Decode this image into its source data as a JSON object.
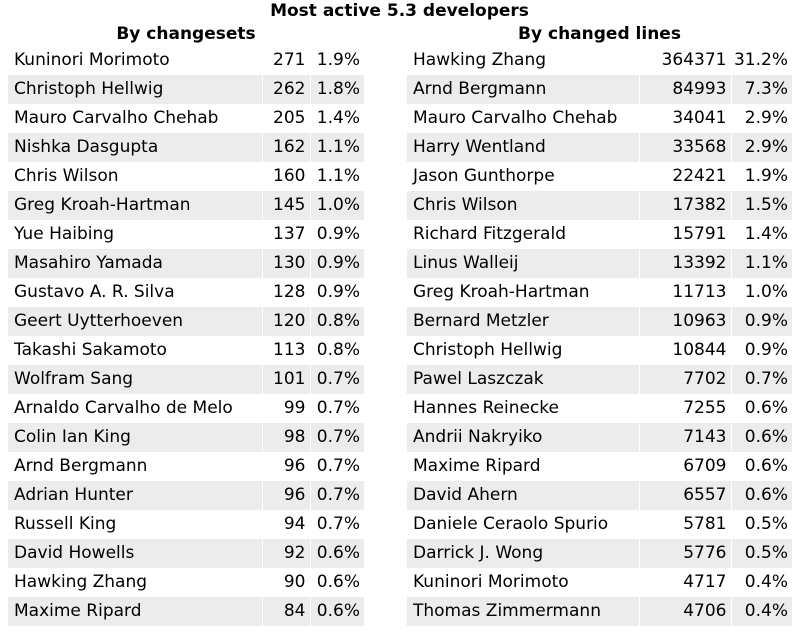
{
  "title": "Most active 5.3 developers",
  "by_changesets": {
    "heading": "By changesets",
    "rows": [
      {
        "name": "Kuninori Morimoto",
        "count": "271",
        "pct": "1.9%"
      },
      {
        "name": "Christoph Hellwig",
        "count": "262",
        "pct": "1.8%"
      },
      {
        "name": "Mauro Carvalho Chehab",
        "count": "205",
        "pct": "1.4%"
      },
      {
        "name": "Nishka Dasgupta",
        "count": "162",
        "pct": "1.1%"
      },
      {
        "name": "Chris Wilson",
        "count": "160",
        "pct": "1.1%"
      },
      {
        "name": "Greg Kroah-Hartman",
        "count": "145",
        "pct": "1.0%"
      },
      {
        "name": "Yue Haibing",
        "count": "137",
        "pct": "0.9%"
      },
      {
        "name": "Masahiro Yamada",
        "count": "130",
        "pct": "0.9%"
      },
      {
        "name": "Gustavo A. R. Silva",
        "count": "128",
        "pct": "0.9%"
      },
      {
        "name": "Geert Uytterhoeven",
        "count": "120",
        "pct": "0.8%"
      },
      {
        "name": "Takashi Sakamoto",
        "count": "113",
        "pct": "0.8%"
      },
      {
        "name": "Wolfram Sang",
        "count": "101",
        "pct": "0.7%"
      },
      {
        "name": "Arnaldo Carvalho de Melo",
        "count": "99",
        "pct": "0.7%"
      },
      {
        "name": "Colin Ian King",
        "count": "98",
        "pct": "0.7%"
      },
      {
        "name": "Arnd Bergmann",
        "count": "96",
        "pct": "0.7%"
      },
      {
        "name": "Adrian Hunter",
        "count": "96",
        "pct": "0.7%"
      },
      {
        "name": "Russell King",
        "count": "94",
        "pct": "0.7%"
      },
      {
        "name": "David Howells",
        "count": "92",
        "pct": "0.6%"
      },
      {
        "name": "Hawking Zhang",
        "count": "90",
        "pct": "0.6%"
      },
      {
        "name": "Maxime Ripard",
        "count": "84",
        "pct": "0.6%"
      }
    ]
  },
  "by_changed_lines": {
    "heading": "By changed lines",
    "rows": [
      {
        "name": "Hawking Zhang",
        "count": "364371",
        "pct": "31.2%"
      },
      {
        "name": "Arnd Bergmann",
        "count": "84993",
        "pct": "7.3%"
      },
      {
        "name": "Mauro Carvalho Chehab",
        "count": "34041",
        "pct": "2.9%"
      },
      {
        "name": "Harry Wentland",
        "count": "33568",
        "pct": "2.9%"
      },
      {
        "name": "Jason Gunthorpe",
        "count": "22421",
        "pct": "1.9%"
      },
      {
        "name": "Chris Wilson",
        "count": "17382",
        "pct": "1.5%"
      },
      {
        "name": "Richard Fitzgerald",
        "count": "15791",
        "pct": "1.4%"
      },
      {
        "name": "Linus Walleij",
        "count": "13392",
        "pct": "1.1%"
      },
      {
        "name": "Greg Kroah-Hartman",
        "count": "11713",
        "pct": "1.0%"
      },
      {
        "name": "Bernard Metzler",
        "count": "10963",
        "pct": "0.9%"
      },
      {
        "name": "Christoph Hellwig",
        "count": "10844",
        "pct": "0.9%"
      },
      {
        "name": "Pawel Laszczak",
        "count": "7702",
        "pct": "0.7%"
      },
      {
        "name": "Hannes Reinecke",
        "count": "7255",
        "pct": "0.6%"
      },
      {
        "name": "Andrii Nakryiko",
        "count": "7143",
        "pct": "0.6%"
      },
      {
        "name": "Maxime Ripard",
        "count": "6709",
        "pct": "0.6%"
      },
      {
        "name": "David Ahern",
        "count": "6557",
        "pct": "0.6%"
      },
      {
        "name": "Daniele Ceraolo Spurio",
        "count": "5781",
        "pct": "0.5%"
      },
      {
        "name": "Darrick J. Wong",
        "count": "5776",
        "pct": "0.5%"
      },
      {
        "name": "Kuninori Morimoto",
        "count": "4717",
        "pct": "0.4%"
      },
      {
        "name": "Thomas Zimmermann",
        "count": "4706",
        "pct": "0.4%"
      }
    ]
  }
}
